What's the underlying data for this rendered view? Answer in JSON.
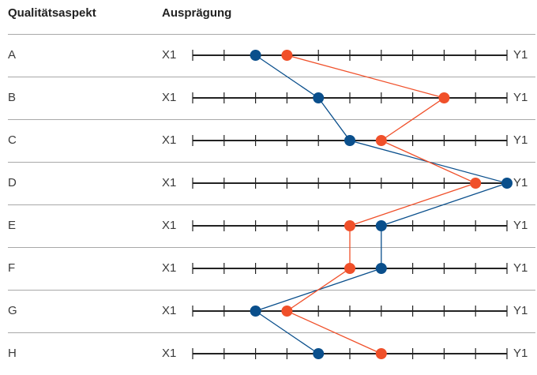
{
  "header": {
    "aspect": "Qualitätsaspekt",
    "value": "Ausprägung"
  },
  "chart_data": {
    "type": "line",
    "title": "",
    "scale": {
      "min_label": "X1",
      "max_label": "Y1",
      "min": 0,
      "max": 10,
      "step": 1
    },
    "categories": [
      "A",
      "B",
      "C",
      "D",
      "E",
      "F",
      "G",
      "H"
    ],
    "series": [
      {
        "color": "#0a4f8c",
        "values": [
          2,
          4,
          5,
          10,
          6,
          6,
          2,
          4
        ]
      },
      {
        "color": "#f0502a",
        "values": [
          3,
          8,
          6,
          9,
          5,
          5,
          3,
          6
        ]
      }
    ]
  }
}
